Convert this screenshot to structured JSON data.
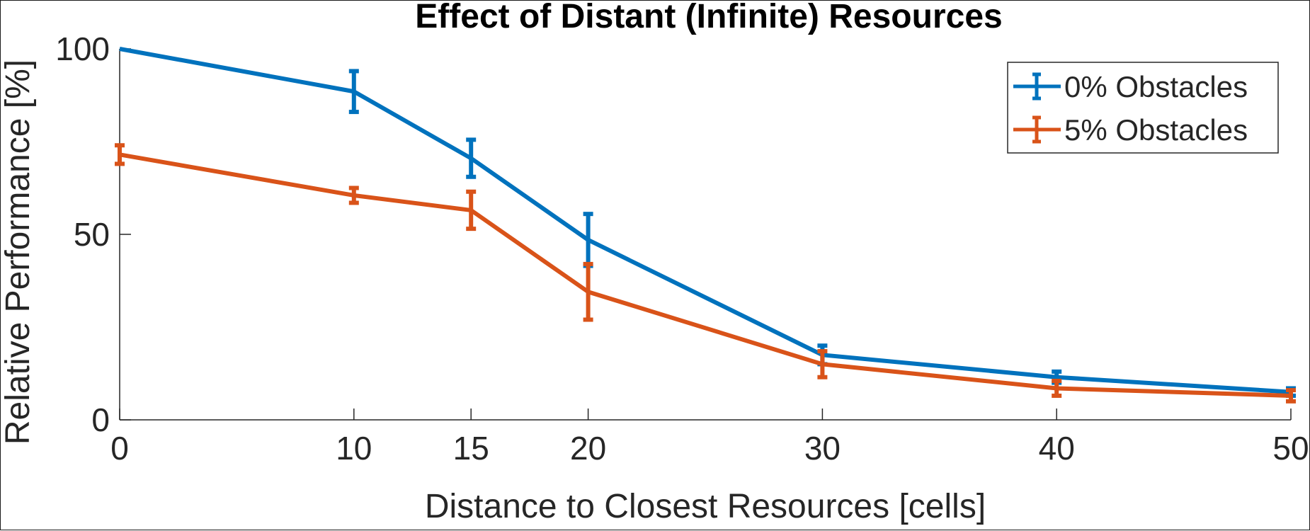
{
  "chart_data": {
    "type": "line",
    "title": "Effect of Distant (Infinite) Resources",
    "xlabel": "Distance to Closest Resources [cells]",
    "ylabel": "Relative Performance [%]",
    "x": [
      0,
      10,
      15,
      20,
      30,
      40,
      50
    ],
    "xlim": [
      0,
      50
    ],
    "ylim": [
      0,
      100
    ],
    "xticks": [
      0,
      10,
      15,
      20,
      30,
      40,
      50
    ],
    "yticks": [
      0,
      50,
      100
    ],
    "xtick_labels": [
      "0",
      "10",
      "15",
      "20",
      "30",
      "40",
      "50"
    ],
    "ytick_labels": [
      "0",
      "50",
      "100"
    ],
    "grid": false,
    "legend_position": "top-right",
    "series": [
      {
        "name": "0% Obstacles",
        "color": "#0072BD",
        "values": [
          100,
          88.5,
          70.5,
          48.5,
          17.5,
          11.5,
          7.5
        ],
        "err_low": [
          0,
          5.5,
          5,
          7,
          2.5,
          1.5,
          1
        ],
        "err_high": [
          0,
          5.5,
          5,
          7,
          2.5,
          1.5,
          1
        ]
      },
      {
        "name": "5% Obstacles",
        "color": "#D95319",
        "values": [
          71.5,
          60.5,
          56.5,
          34.5,
          15,
          8.5,
          6.5
        ],
        "err_low": [
          2.5,
          2,
          5,
          7.5,
          3.5,
          2,
          1.5
        ],
        "err_high": [
          2.5,
          2,
          5,
          7.5,
          3.5,
          2,
          1.5
        ]
      }
    ]
  }
}
